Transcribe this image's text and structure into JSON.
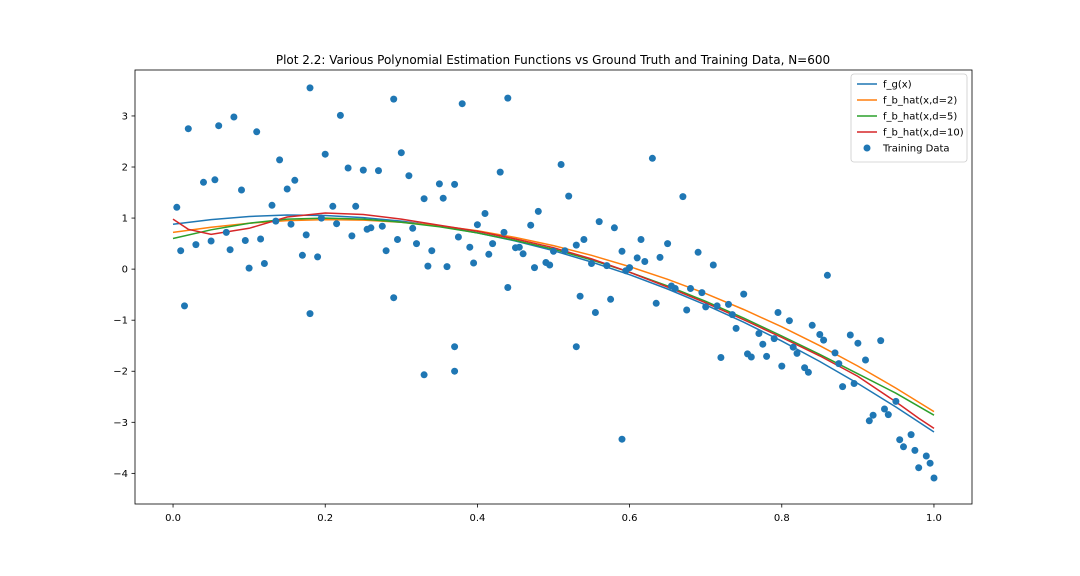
{
  "chart_data": {
    "type": "scatter",
    "title": "Plot 2.2: Various Polynomial Estimation Functions vs Ground Truth and Training Data, N=600",
    "xlabel": "",
    "ylabel": "",
    "xlim": [
      -0.05,
      1.05
    ],
    "ylim": [
      -4.6,
      3.9
    ],
    "xticks": [
      0.0,
      0.2,
      0.4,
      0.6,
      0.8,
      1.0
    ],
    "xtick_labels": [
      "0.0",
      "0.2",
      "0.4",
      "0.6",
      "0.8",
      "1.0"
    ],
    "yticks": [
      -4,
      -3,
      -2,
      -1,
      0,
      1,
      2,
      3
    ],
    "ytick_labels": [
      "−4",
      "−3",
      "−2",
      "−1",
      "0",
      "1",
      "2",
      "3"
    ],
    "grid": false,
    "legend_position": "top-right",
    "series": [
      {
        "name": "f_g(x)",
        "kind": "line",
        "color": "#1f77b4",
        "x": [
          0.0,
          0.05,
          0.1,
          0.15,
          0.2,
          0.25,
          0.3,
          0.35,
          0.4,
          0.45,
          0.5,
          0.55,
          0.6,
          0.65,
          0.7,
          0.75,
          0.8,
          0.85,
          0.9,
          0.95,
          1.0
        ],
        "y": [
          0.88,
          0.97,
          1.03,
          1.06,
          1.05,
          1.01,
          0.94,
          0.84,
          0.71,
          0.55,
          0.36,
          0.14,
          -0.11,
          -0.39,
          -0.7,
          -1.04,
          -1.41,
          -1.81,
          -2.24,
          -2.7,
          -3.19
        ]
      },
      {
        "name": "f_b_hat(x,d=2)",
        "kind": "line",
        "color": "#ff7f0e",
        "x": [
          0.0,
          0.05,
          0.1,
          0.15,
          0.2,
          0.25,
          0.3,
          0.35,
          0.4,
          0.45,
          0.5,
          0.55,
          0.6,
          0.65,
          0.7,
          0.75,
          0.8,
          0.85,
          0.9,
          0.95,
          1.0
        ],
        "y": [
          0.72,
          0.82,
          0.9,
          0.95,
          0.97,
          0.96,
          0.92,
          0.85,
          0.75,
          0.62,
          0.46,
          0.27,
          0.05,
          -0.2,
          -0.48,
          -0.79,
          -1.13,
          -1.5,
          -1.9,
          -2.33,
          -2.79
        ]
      },
      {
        "name": "f_b_hat(x,d=5)",
        "kind": "line",
        "color": "#2ca02c",
        "x": [
          0.0,
          0.05,
          0.1,
          0.15,
          0.2,
          0.25,
          0.3,
          0.35,
          0.4,
          0.45,
          0.5,
          0.55,
          0.6,
          0.65,
          0.7,
          0.75,
          0.8,
          0.85,
          0.9,
          0.95,
          1.0
        ],
        "y": [
          0.6,
          0.77,
          0.9,
          0.98,
          1.0,
          0.98,
          0.92,
          0.83,
          0.71,
          0.56,
          0.39,
          0.18,
          -0.06,
          -0.33,
          -0.63,
          -0.96,
          -1.31,
          -1.67,
          -2.05,
          -2.43,
          -2.86
        ]
      },
      {
        "name": "f_b_hat(x,d=10)",
        "kind": "line",
        "color": "#d62728",
        "x": [
          0.0,
          0.02,
          0.05,
          0.1,
          0.15,
          0.2,
          0.25,
          0.3,
          0.35,
          0.4,
          0.45,
          0.5,
          0.55,
          0.6,
          0.65,
          0.7,
          0.75,
          0.8,
          0.85,
          0.9,
          0.95,
          0.98,
          1.0
        ],
        "y": [
          0.98,
          0.78,
          0.68,
          0.8,
          1.02,
          1.1,
          1.07,
          0.98,
          0.86,
          0.74,
          0.59,
          0.42,
          0.2,
          -0.06,
          -0.35,
          -0.66,
          -0.99,
          -1.34,
          -1.7,
          -2.1,
          -2.6,
          -2.92,
          -3.12
        ]
      },
      {
        "name": "Training Data",
        "kind": "scatter",
        "color": "#1f77b4",
        "x": [
          0.01,
          0.02,
          0.04,
          0.05,
          0.06,
          0.07,
          0.08,
          0.09,
          0.1,
          0.11,
          0.12,
          0.13,
          0.14,
          0.15,
          0.16,
          0.17,
          0.18,
          0.19,
          0.2,
          0.21,
          0.22,
          0.23,
          0.24,
          0.25,
          0.26,
          0.27,
          0.28,
          0.29,
          0.3,
          0.31,
          0.32,
          0.33,
          0.34,
          0.35,
          0.36,
          0.37,
          0.38,
          0.39,
          0.4,
          0.41,
          0.42,
          0.43,
          0.44,
          0.45,
          0.46,
          0.47,
          0.48,
          0.49,
          0.5,
          0.51,
          0.52,
          0.53,
          0.54,
          0.55,
          0.56,
          0.57,
          0.58,
          0.59,
          0.6,
          0.61,
          0.62,
          0.63,
          0.64,
          0.65,
          0.66,
          0.67,
          0.68,
          0.69,
          0.7,
          0.71,
          0.72,
          0.73,
          0.74,
          0.75,
          0.76,
          0.77,
          0.78,
          0.79,
          0.8,
          0.81,
          0.82,
          0.83,
          0.84,
          0.85,
          0.86,
          0.87,
          0.88,
          0.89,
          0.9,
          0.91,
          0.92,
          0.93,
          0.94,
          0.95,
          0.96,
          0.97,
          0.98,
          0.99,
          1.0,
          0.005,
          0.015,
          0.03,
          0.055,
          0.075,
          0.095,
          0.115,
          0.135,
          0.155,
          0.175,
          0.195,
          0.215,
          0.235,
          0.255,
          0.275,
          0.295,
          0.315,
          0.335,
          0.355,
          0.375,
          0.395,
          0.415,
          0.435,
          0.455,
          0.475,
          0.495,
          0.515,
          0.535,
          0.555,
          0.575,
          0.595,
          0.615,
          0.635,
          0.655,
          0.675,
          0.695,
          0.715,
          0.735,
          0.755,
          0.775,
          0.795,
          0.815,
          0.835,
          0.855,
          0.875,
          0.895,
          0.915,
          0.935,
          0.955,
          0.975,
          0.995,
          0.18,
          0.29,
          0.37,
          0.44,
          0.53,
          0.59,
          0.33,
          0.37
        ],
        "y": [
          0.36,
          2.75,
          1.7,
          0.55,
          2.81,
          0.72,
          2.98,
          1.55,
          0.02,
          2.69,
          0.11,
          1.25,
          2.14,
          1.57,
          1.74,
          0.27,
          3.55,
          0.24,
          2.25,
          1.23,
          3.01,
          1.98,
          1.23,
          1.94,
          0.81,
          1.93,
          0.36,
          3.33,
          2.28,
          1.83,
          0.5,
          1.38,
          0.36,
          1.67,
          0.05,
          1.66,
          3.24,
          0.43,
          0.87,
          1.09,
          0.5,
          1.9,
          3.35,
          0.42,
          0.3,
          0.86,
          1.13,
          0.13,
          0.35,
          2.05,
          1.43,
          0.47,
          0.58,
          0.11,
          0.93,
          0.07,
          0.81,
          0.35,
          0.03,
          0.22,
          0.15,
          2.17,
          0.23,
          0.5,
          -0.38,
          1.42,
          -0.38,
          0.33,
          -0.74,
          0.08,
          -1.73,
          -0.69,
          -1.16,
          -0.49,
          -1.72,
          -1.26,
          -1.71,
          -1.36,
          -1.9,
          -1.01,
          -1.65,
          -1.93,
          -1.1,
          -1.28,
          -0.12,
          -1.64,
          -2.3,
          -1.29,
          -1.45,
          -1.78,
          -2.86,
          -1.4,
          -2.85,
          -2.59,
          -3.48,
          -3.24,
          -3.89,
          -3.66,
          -4.09,
          1.21,
          -0.72,
          0.48,
          1.75,
          0.38,
          0.56,
          0.59,
          0.94,
          0.88,
          0.67,
          1.0,
          0.89,
          0.65,
          0.78,
          0.84,
          0.58,
          0.8,
          0.06,
          1.39,
          0.63,
          0.12,
          0.29,
          0.72,
          0.43,
          0.03,
          0.08,
          0.36,
          -0.53,
          -0.85,
          -0.59,
          -0.03,
          0.58,
          -0.67,
          -0.33,
          -0.8,
          -0.46,
          -0.72,
          -0.89,
          -1.66,
          -1.47,
          -0.85,
          -1.53,
          -2.02,
          -1.39,
          -1.85,
          -2.24,
          -2.97,
          -2.74,
          -3.34,
          -3.55,
          -3.8,
          -0.87,
          -0.56,
          -2.0,
          -0.36,
          -1.52,
          -3.33,
          -2.07,
          -1.52
        ]
      }
    ]
  }
}
